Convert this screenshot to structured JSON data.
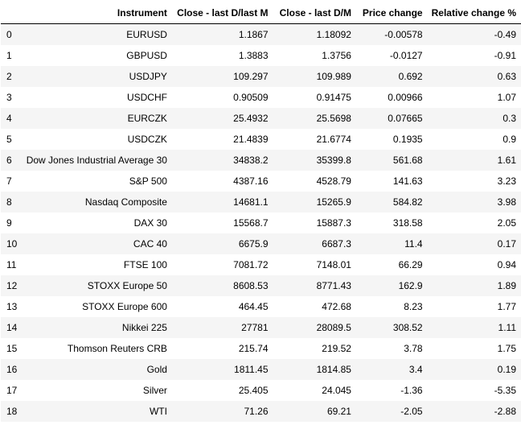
{
  "table": {
    "headers": [
      "",
      "Instrument",
      "Close - last D/last M",
      "Close - last D/M",
      "Price change",
      "Relative change %"
    ],
    "rows": [
      [
        "0",
        "EURUSD",
        "1.1867",
        "1.18092",
        "-0.00578",
        "-0.49"
      ],
      [
        "1",
        "GBPUSD",
        "1.3883",
        "1.3756",
        "-0.0127",
        "-0.91"
      ],
      [
        "2",
        "USDJPY",
        "109.297",
        "109.989",
        "0.692",
        "0.63"
      ],
      [
        "3",
        "USDCHF",
        "0.90509",
        "0.91475",
        "0.00966",
        "1.07"
      ],
      [
        "4",
        "EURCZK",
        "25.4932",
        "25.5698",
        "0.07665",
        "0.3"
      ],
      [
        "5",
        "USDCZK",
        "21.4839",
        "21.6774",
        "0.1935",
        "0.9"
      ],
      [
        "6",
        "Dow Jones Industrial Average 30",
        "34838.2",
        "35399.8",
        "561.68",
        "1.61"
      ],
      [
        "7",
        "S&P 500",
        "4387.16",
        "4528.79",
        "141.63",
        "3.23"
      ],
      [
        "8",
        "Nasdaq Composite",
        "14681.1",
        "15265.9",
        "584.82",
        "3.98"
      ],
      [
        "9",
        "DAX 30",
        "15568.7",
        "15887.3",
        "318.58",
        "2.05"
      ],
      [
        "10",
        "CAC 40",
        "6675.9",
        "6687.3",
        "11.4",
        "0.17"
      ],
      [
        "11",
        "FTSE 100",
        "7081.72",
        "7148.01",
        "66.29",
        "0.94"
      ],
      [
        "12",
        "STOXX Europe 50",
        "8608.53",
        "8771.43",
        "162.9",
        "1.89"
      ],
      [
        "13",
        "STOXX Europe 600",
        "464.45",
        "472.68",
        "8.23",
        "1.77"
      ],
      [
        "14",
        "Nikkei 225",
        "27781",
        "28089.5",
        "308.52",
        "1.11"
      ],
      [
        "15",
        "Thomson Reuters CRB",
        "215.74",
        "219.52",
        "3.78",
        "1.75"
      ],
      [
        "16",
        "Gold",
        "1811.45",
        "1814.85",
        "3.4",
        "0.19"
      ],
      [
        "17",
        "Silver",
        "25.405",
        "24.045",
        "-1.36",
        "-5.35"
      ],
      [
        "18",
        "WTI",
        "71.26",
        "69.21",
        "-2.05",
        "-2.88"
      ]
    ]
  }
}
